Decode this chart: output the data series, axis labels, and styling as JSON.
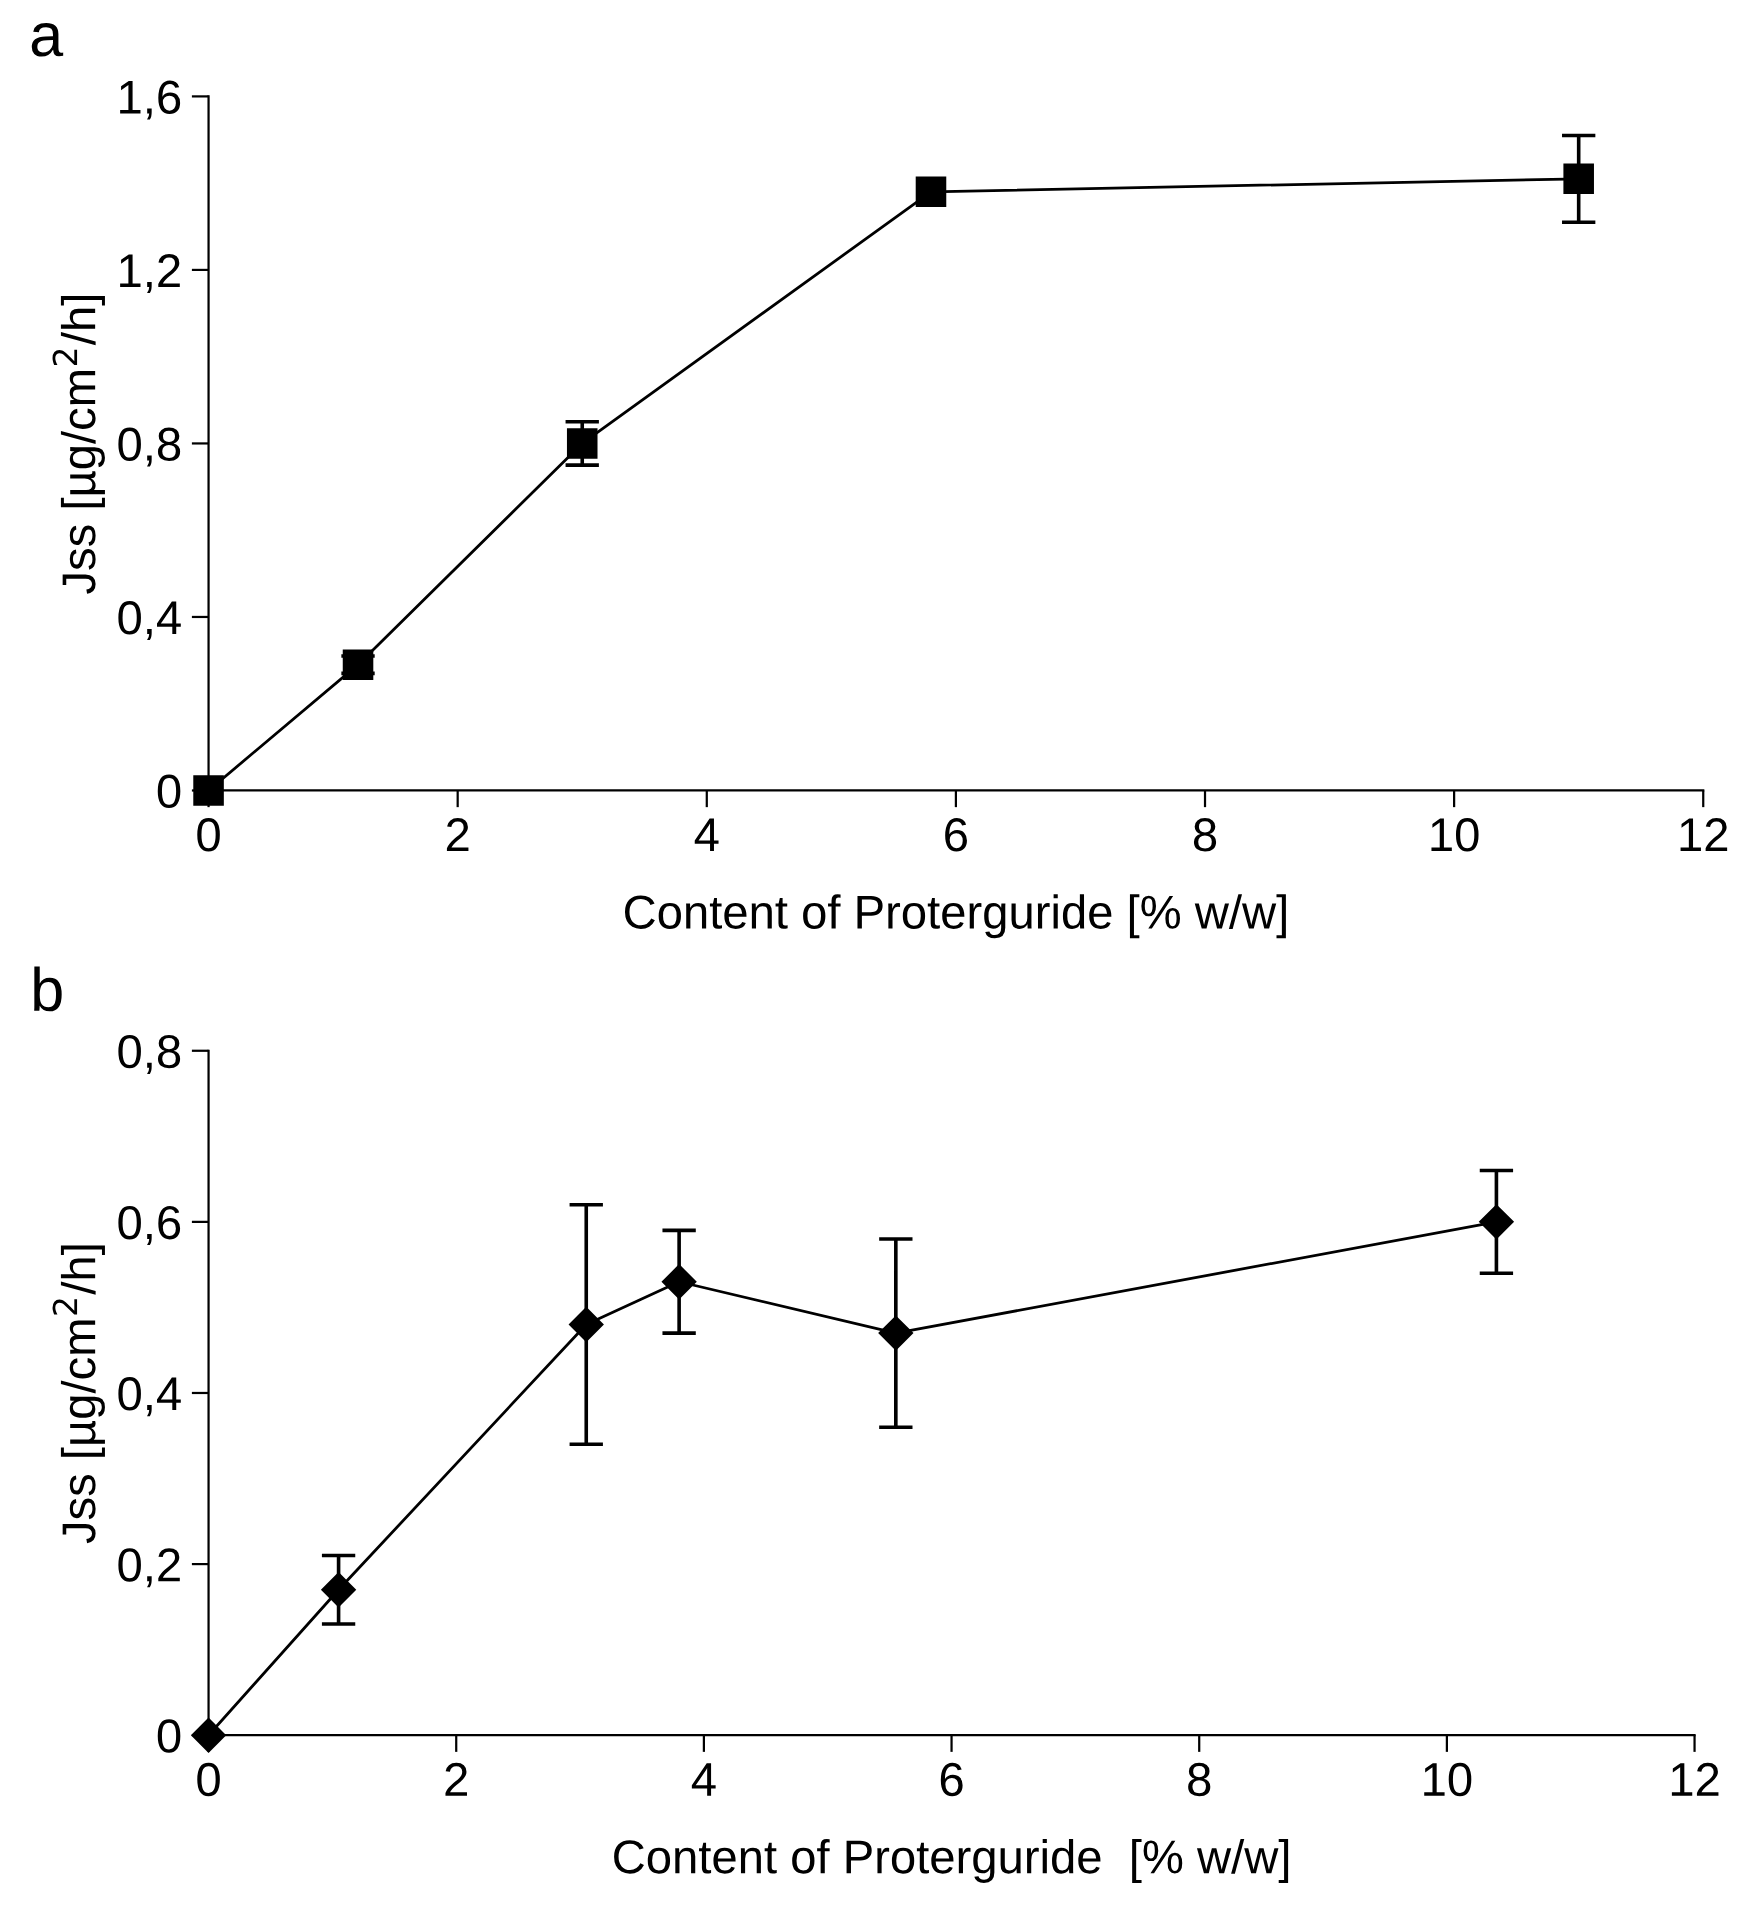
{
  "chart_data": [
    {
      "type": "line",
      "title": "a",
      "xlabel": "Content of Proterguride [% w/w]",
      "ylabel": "Jss [µg/cm$^{2}$/h]",
      "x": [
        0,
        1.2,
        3,
        5.8,
        11
      ],
      "series": [
        {
          "color": "#000000",
          "values": [
            0,
            0.29,
            0.8,
            1.38,
            1.41
          ],
          "errors": [
            null,
            0.02,
            0.05,
            null,
            0.1
          ]
        }
      ],
      "marker": "square",
      "line_style": "solid",
      "grid": false,
      "legend": false,
      "xlim": [
        0,
        12
      ],
      "xticks": [
        0,
        2,
        4,
        6,
        8,
        10,
        12
      ],
      "ylim": [
        0,
        1.6
      ],
      "yticks": [
        {
          "value": 0,
          "label": "0"
        },
        {
          "value": 0.4,
          "label": "0,4"
        },
        {
          "value": 0.8,
          "label": "0,8"
        },
        {
          "value": 1.2,
          "label": "1,2"
        },
        {
          "value": 1.6,
          "label": "1,6"
        }
      ]
    },
    {
      "type": "line",
      "title": "b",
      "xlabel": "Content of Proterguride  [% w/w]",
      "ylabel": "Jss [µg/cm$^{2}$/h]",
      "x": [
        0,
        1.05,
        3.05,
        3.8,
        5.55,
        10.4
      ],
      "series": [
        {
          "color": "#000000",
          "values": [
            0,
            0.17,
            0.48,
            0.53,
            0.47,
            0.6
          ],
          "errors": [
            null,
            0.04,
            0.14,
            0.06,
            0.11,
            0.06
          ]
        }
      ],
      "marker": "diamond",
      "line_style": "solid",
      "grid": false,
      "legend": false,
      "xlim": [
        0,
        12
      ],
      "xticks": [
        0,
        2,
        4,
        6,
        8,
        10,
        12
      ],
      "ylim": [
        0,
        0.8
      ],
      "yticks": [
        {
          "value": 0,
          "label": "0"
        },
        {
          "value": 0.2,
          "label": "0,2"
        },
        {
          "value": 0.4,
          "label": "0,4"
        },
        {
          "value": 0.6,
          "label": "0,6"
        },
        {
          "value": 0.8,
          "label": "0,8"
        }
      ]
    }
  ]
}
